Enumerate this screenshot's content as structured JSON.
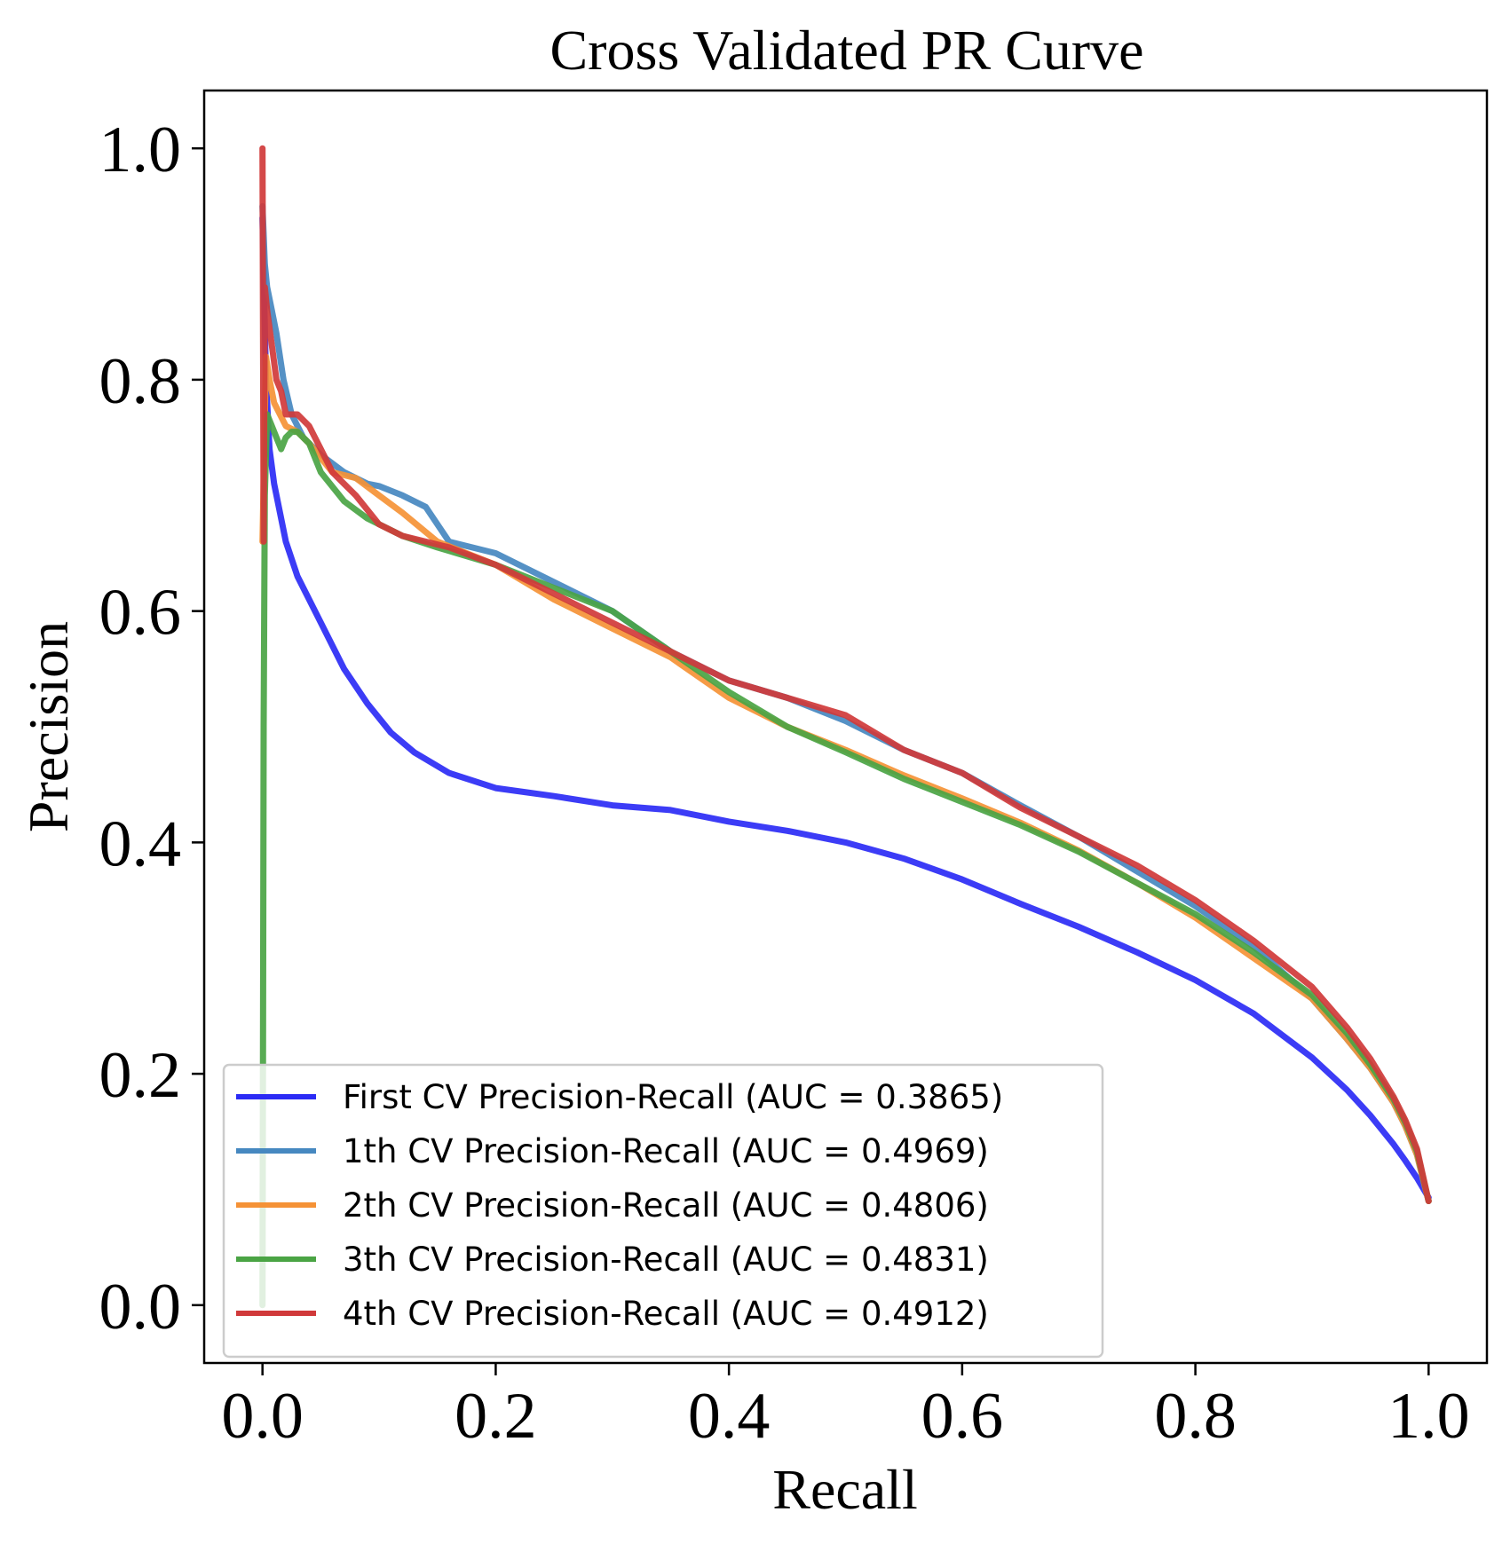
{
  "chart_data": {
    "type": "line",
    "title": "Cross Validated PR Curve",
    "xlabel": "Recall",
    "ylabel": "Precision",
    "xlim": [
      -0.05,
      1.05
    ],
    "ylim": [
      -0.05,
      1.05
    ],
    "xticks": [
      0.0,
      0.2,
      0.4,
      0.6,
      0.8,
      1.0
    ],
    "xtick_labels": [
      "0.0",
      "0.2",
      "0.4",
      "0.6",
      "0.8",
      "1.0"
    ],
    "yticks": [
      0.0,
      0.2,
      0.4,
      0.6,
      0.8,
      1.0
    ],
    "ytick_labels": [
      "0.0",
      "0.2",
      "0.4",
      "0.6",
      "0.8",
      "1.0"
    ],
    "grid": false,
    "legend_position": "lower left",
    "series": [
      {
        "name": "First CV Precision-Recall (AUC = 0.3865)",
        "color": "#2b2bf5",
        "x": [
          0.0,
          0.003,
          0.006,
          0.01,
          0.02,
          0.03,
          0.05,
          0.07,
          0.09,
          0.11,
          0.13,
          0.16,
          0.2,
          0.25,
          0.3,
          0.35,
          0.4,
          0.45,
          0.5,
          0.55,
          0.6,
          0.65,
          0.7,
          0.75,
          0.8,
          0.85,
          0.9,
          0.93,
          0.95,
          0.97,
          0.98,
          0.99,
          1.0
        ],
        "y": [
          0.94,
          0.8,
          0.74,
          0.71,
          0.66,
          0.63,
          0.59,
          0.55,
          0.52,
          0.495,
          0.478,
          0.46,
          0.447,
          0.44,
          0.432,
          0.428,
          0.418,
          0.41,
          0.4,
          0.386,
          0.368,
          0.347,
          0.327,
          0.305,
          0.281,
          0.252,
          0.214,
          0.186,
          0.164,
          0.139,
          0.125,
          0.11,
          0.093
        ]
      },
      {
        "name": "1th CV Precision-Recall (AUC = 0.4969)",
        "color": "#4688c0",
        "x": [
          0.0,
          0.002,
          0.004,
          0.008,
          0.012,
          0.018,
          0.025,
          0.035,
          0.05,
          0.07,
          0.09,
          0.1,
          0.12,
          0.14,
          0.16,
          0.2,
          0.25,
          0.3,
          0.35,
          0.4,
          0.45,
          0.5,
          0.55,
          0.6,
          0.65,
          0.7,
          0.75,
          0.8,
          0.85,
          0.9,
          0.93,
          0.95,
          0.97,
          0.98,
          0.99,
          1.0
        ],
        "y": [
          0.95,
          0.9,
          0.88,
          0.86,
          0.84,
          0.8,
          0.77,
          0.75,
          0.735,
          0.72,
          0.71,
          0.708,
          0.7,
          0.69,
          0.66,
          0.65,
          0.625,
          0.6,
          0.565,
          0.54,
          0.525,
          0.505,
          0.48,
          0.46,
          0.432,
          0.405,
          0.375,
          0.345,
          0.31,
          0.265,
          0.23,
          0.205,
          0.175,
          0.155,
          0.13,
          0.09
        ]
      },
      {
        "name": "2th CV Precision-Recall (AUC = 0.4806)",
        "color": "#f59236",
        "x": [
          0.0,
          0.003,
          0.006,
          0.01,
          0.015,
          0.02,
          0.03,
          0.04,
          0.06,
          0.08,
          0.1,
          0.12,
          0.15,
          0.2,
          0.25,
          0.3,
          0.35,
          0.4,
          0.45,
          0.5,
          0.55,
          0.6,
          0.65,
          0.7,
          0.75,
          0.8,
          0.85,
          0.9,
          0.93,
          0.95,
          0.97,
          0.98,
          0.99,
          1.0
        ],
        "y": [
          0.66,
          0.82,
          0.8,
          0.78,
          0.77,
          0.76,
          0.755,
          0.745,
          0.72,
          0.715,
          0.7,
          0.685,
          0.66,
          0.64,
          0.61,
          0.585,
          0.56,
          0.525,
          0.5,
          0.48,
          0.458,
          0.438,
          0.417,
          0.393,
          0.365,
          0.335,
          0.3,
          0.265,
          0.23,
          0.205,
          0.175,
          0.155,
          0.13,
          0.09
        ]
      },
      {
        "name": "3th CV Precision-Recall (AUC = 0.4831)",
        "color": "#4aa444",
        "x": [
          0.0,
          0.001,
          0.002,
          0.004,
          0.008,
          0.012,
          0.016,
          0.02,
          0.025,
          0.03,
          0.04,
          0.05,
          0.07,
          0.09,
          0.12,
          0.15,
          0.2,
          0.25,
          0.3,
          0.35,
          0.4,
          0.45,
          0.5,
          0.55,
          0.6,
          0.65,
          0.7,
          0.75,
          0.8,
          0.85,
          0.9,
          0.93,
          0.95,
          0.97,
          0.98,
          0.99,
          1.0
        ],
        "y": [
          0.0,
          0.5,
          0.7,
          0.77,
          0.76,
          0.75,
          0.74,
          0.75,
          0.755,
          0.755,
          0.745,
          0.72,
          0.695,
          0.68,
          0.665,
          0.655,
          0.64,
          0.62,
          0.6,
          0.565,
          0.53,
          0.5,
          0.478,
          0.455,
          0.435,
          0.415,
          0.392,
          0.365,
          0.338,
          0.305,
          0.268,
          0.235,
          0.208,
          0.178,
          0.158,
          0.133,
          0.09
        ]
      },
      {
        "name": "4th CV Precision-Recall (AUC = 0.4912)",
        "color": "#d0393a",
        "x": [
          0.0,
          0.001,
          0.002,
          0.004,
          0.008,
          0.012,
          0.016,
          0.02,
          0.03,
          0.04,
          0.05,
          0.06,
          0.08,
          0.1,
          0.12,
          0.14,
          0.16,
          0.2,
          0.25,
          0.3,
          0.35,
          0.4,
          0.45,
          0.5,
          0.55,
          0.6,
          0.65,
          0.7,
          0.75,
          0.8,
          0.85,
          0.9,
          0.93,
          0.95,
          0.97,
          0.98,
          0.99,
          1.0
        ],
        "y": [
          1.0,
          0.66,
          0.88,
          0.86,
          0.83,
          0.8,
          0.79,
          0.77,
          0.77,
          0.76,
          0.74,
          0.72,
          0.7,
          0.675,
          0.665,
          0.66,
          0.655,
          0.64,
          0.615,
          0.59,
          0.565,
          0.54,
          0.525,
          0.51,
          0.48,
          0.46,
          0.43,
          0.405,
          0.38,
          0.35,
          0.315,
          0.275,
          0.24,
          0.213,
          0.18,
          0.16,
          0.135,
          0.09
        ]
      }
    ]
  }
}
